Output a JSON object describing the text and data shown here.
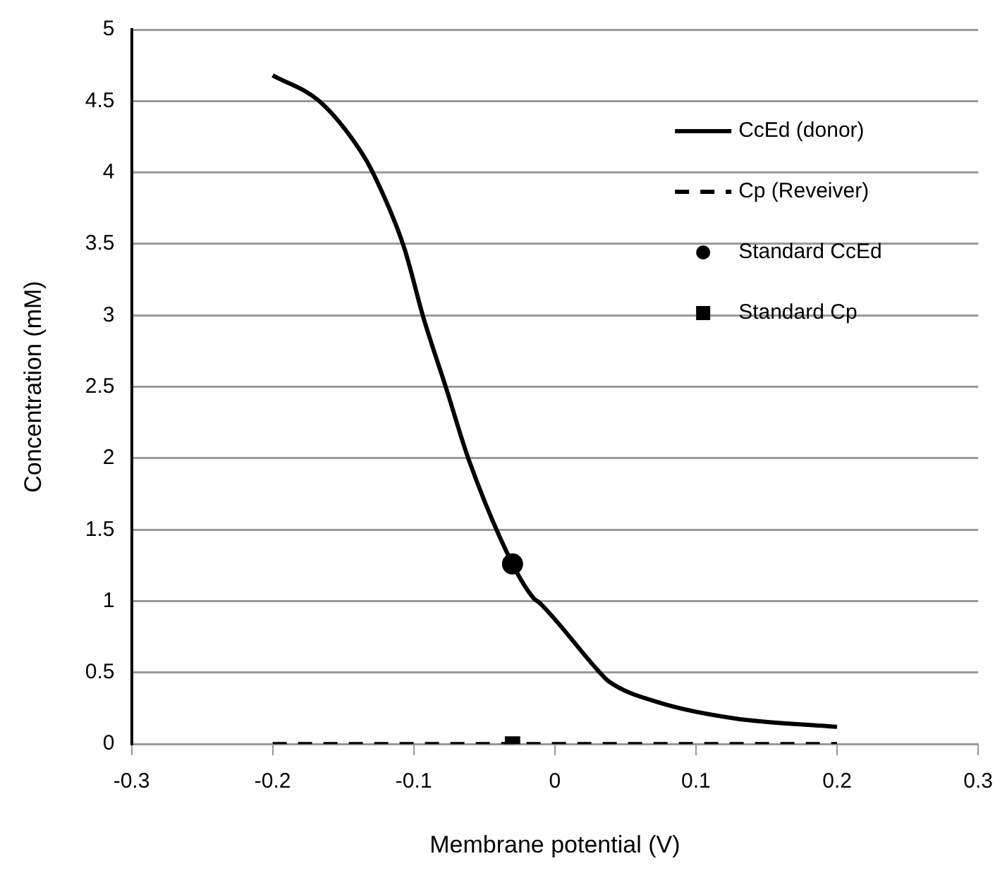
{
  "chart_data": {
    "type": "line",
    "xlabel": "Membrane potential (V)",
    "ylabel": "Concentration (mM)",
    "xlim": [
      -0.3,
      0.3
    ],
    "xticks": [
      -0.3,
      -0.2,
      -0.1,
      0,
      0.1,
      0.2,
      0.3
    ],
    "ylim": [
      0,
      5
    ],
    "yticks": [
      0,
      0.5,
      1,
      1.5,
      2,
      2.5,
      3,
      3.5,
      4,
      4.5,
      5
    ],
    "grid": "y",
    "legend": "top right",
    "series": [
      {
        "name": "CcEd (donor)",
        "color": "#000000",
        "line_style": "solid",
        "marker": "none",
        "x": [
          -0.2,
          -0.167,
          -0.139,
          -0.128,
          -0.107,
          -0.093,
          -0.077,
          -0.061,
          -0.03,
          -0.015,
          -0.011,
          0.031,
          0.038,
          0.074,
          0.127,
          0.2
        ],
        "values": [
          4.68,
          4.5,
          4.17,
          3.98,
          3.48,
          2.98,
          2.49,
          1.99,
          1.26,
          1.02,
          0.99,
          0.51,
          0.44,
          0.29,
          0.18,
          0.12
        ]
      },
      {
        "name": "Cp (Reveiver)",
        "color": "#000000",
        "line_style": "dashed",
        "marker": "none",
        "x": [
          -0.2,
          0.2
        ],
        "values": [
          0,
          0
        ]
      },
      {
        "name": "Standard CcEd",
        "type": "scatter",
        "color": "#000000",
        "marker": "circle",
        "x": [
          -0.03
        ],
        "values": [
          1.26
        ]
      },
      {
        "name": "Standard Cp",
        "type": "scatter",
        "color": "#000000",
        "marker": "square",
        "x": [
          -0.03
        ],
        "values": [
          0
        ]
      }
    ]
  }
}
